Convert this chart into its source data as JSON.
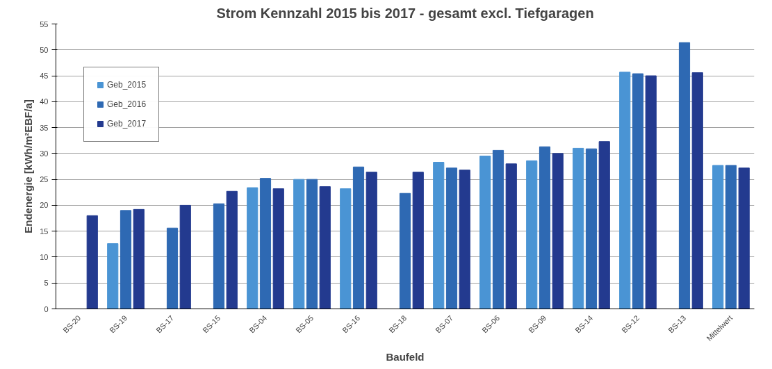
{
  "chart_data": {
    "type": "bar",
    "title": "Strom Kennzahl 2015 bis 2017 - gesamt excl. Tiefgaragen",
    "xlabel": "Baufeld",
    "ylabel": "Endenergie [kWh/m²EBF/a]",
    "categories": [
      "BS-20",
      "BS-19",
      "BS-17",
      "BS-15",
      "BS-04",
      "BS-05",
      "BS-16",
      "BS-18",
      "BS-07",
      "BS-06",
      "BS-09",
      "BS-14",
      "BS-12",
      "BS-13",
      "Mittelwert"
    ],
    "series": [
      {
        "name": "Geb_2015",
        "color": "#4a94d4",
        "values": [
          null,
          12.6,
          null,
          null,
          23.4,
          25.0,
          23.2,
          null,
          28.3,
          29.5,
          28.6,
          31.0,
          45.7,
          null,
          27.7
        ]
      },
      {
        "name": "Geb_2016",
        "color": "#2e69b3",
        "values": [
          null,
          19.0,
          15.6,
          20.3,
          25.2,
          25.0,
          27.4,
          22.3,
          27.2,
          30.6,
          31.3,
          30.9,
          45.4,
          51.4,
          27.7
        ]
      },
      {
        "name": "Geb_2017",
        "color": "#233a8f",
        "values": [
          18.0,
          19.2,
          20.0,
          22.7,
          23.2,
          23.6,
          26.4,
          26.4,
          26.8,
          28.0,
          30.0,
          32.3,
          45.0,
          45.6,
          27.2
        ]
      }
    ],
    "ylim": [
      0,
      55
    ],
    "yticks": [
      0,
      5,
      10,
      15,
      20,
      25,
      30,
      35,
      40,
      45,
      50,
      55
    ],
    "grid": "y",
    "legend": "top left"
  }
}
